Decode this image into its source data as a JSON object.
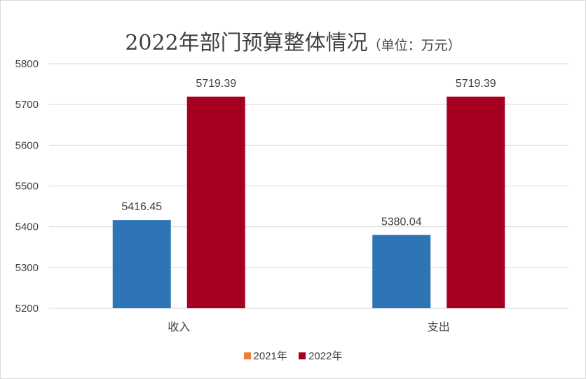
{
  "title": "2022年部门预算整体情况",
  "title_unit": "（单位：万元）",
  "chart_data": {
    "type": "bar",
    "title": "2022年部门预算整体情况（单位：万元）",
    "categories": [
      "收入",
      "支出"
    ],
    "series": [
      {
        "name": "2021年",
        "values": [
          5416.45,
          5380.04
        ],
        "labels": [
          "5416.45",
          "5380.04"
        ],
        "color": "#2e75b6",
        "legend_color": "#ed7d31"
      },
      {
        "name": "2022年",
        "values": [
          5719.39,
          5719.39
        ],
        "labels": [
          "5719.39",
          "5719.39"
        ],
        "color": "#a50021",
        "legend_color": "#a50021"
      }
    ],
    "ylim": [
      5200,
      5800
    ],
    "yticks": [
      5200,
      5300,
      5400,
      5500,
      5600,
      5700,
      5800
    ],
    "grid": true,
    "legend_position": "bottom"
  }
}
